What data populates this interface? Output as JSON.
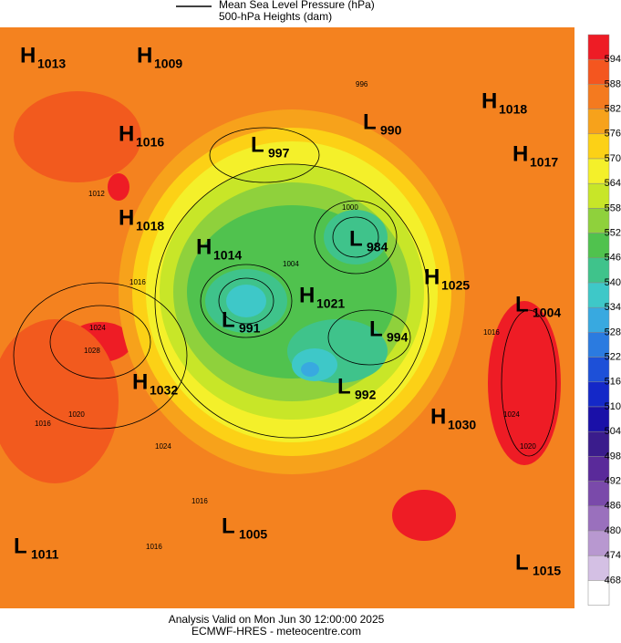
{
  "legend": {
    "line_label": "Mean Sea Level Pressure (hPa)",
    "fill_label": "500-hPa Heights (dam)"
  },
  "centers": [
    {
      "letter": "H",
      "pressure": 1013
    },
    {
      "letter": "H",
      "pressure": 1009
    },
    {
      "letter": "H",
      "pressure": 1016
    },
    {
      "letter": "H",
      "pressure": 1018
    },
    {
      "letter": "H",
      "pressure": 1014
    },
    {
      "letter": "L",
      "pressure": 991
    },
    {
      "letter": "H",
      "pressure": 1021
    },
    {
      "letter": "L",
      "pressure": 984
    },
    {
      "letter": "L",
      "pressure": 994
    },
    {
      "letter": "L",
      "pressure": 992
    },
    {
      "letter": "L",
      "pressure": 997
    },
    {
      "letter": "L",
      "pressure": 990
    },
    {
      "letter": "H",
      "pressure": 1018
    },
    {
      "letter": "H",
      "pressure": 1017
    },
    {
      "letter": "H",
      "pressure": 1025
    },
    {
      "letter": "L",
      "pressure": 1004
    },
    {
      "letter": "H",
      "pressure": 1032
    },
    {
      "letter": "H",
      "pressure": 1030
    },
    {
      "letter": "L",
      "pressure": 1005
    },
    {
      "letter": "L",
      "pressure": 1011
    },
    {
      "letter": "L",
      "pressure": 1015
    }
  ],
  "contour_labels": [
    1012,
    1016,
    1024,
    1028,
    1020,
    1016,
    1024,
    1016,
    1016,
    1016,
    1024,
    1020,
    996,
    1000,
    1004
  ],
  "colorbar": {
    "levels": [
      594,
      588,
      582,
      576,
      570,
      564,
      558,
      552,
      546,
      540,
      534,
      528,
      522,
      516,
      510,
      504,
      498,
      492,
      486,
      480,
      474,
      468
    ],
    "colors": [
      "#ee1c25",
      "#f4561f",
      "#f47a1f",
      "#f7a21b",
      "#fcd116",
      "#f4f02a",
      "#c8e628",
      "#8fd13c",
      "#50c24e",
      "#3fc38b",
      "#3ec8c8",
      "#38a9e0",
      "#2b7be0",
      "#1d50d8",
      "#1428c8",
      "#1a10a8",
      "#3a1c8c",
      "#5a2a9a",
      "#7a4aaa",
      "#9a70bd",
      "#b898d0",
      "#d4c0e4",
      "#ffffff"
    ]
  },
  "footer": {
    "line1": "Analysis Valid on Mon Jun 30 12:00:00 2025",
    "line2": "ECMWF-HRES - meteocentre.com"
  }
}
